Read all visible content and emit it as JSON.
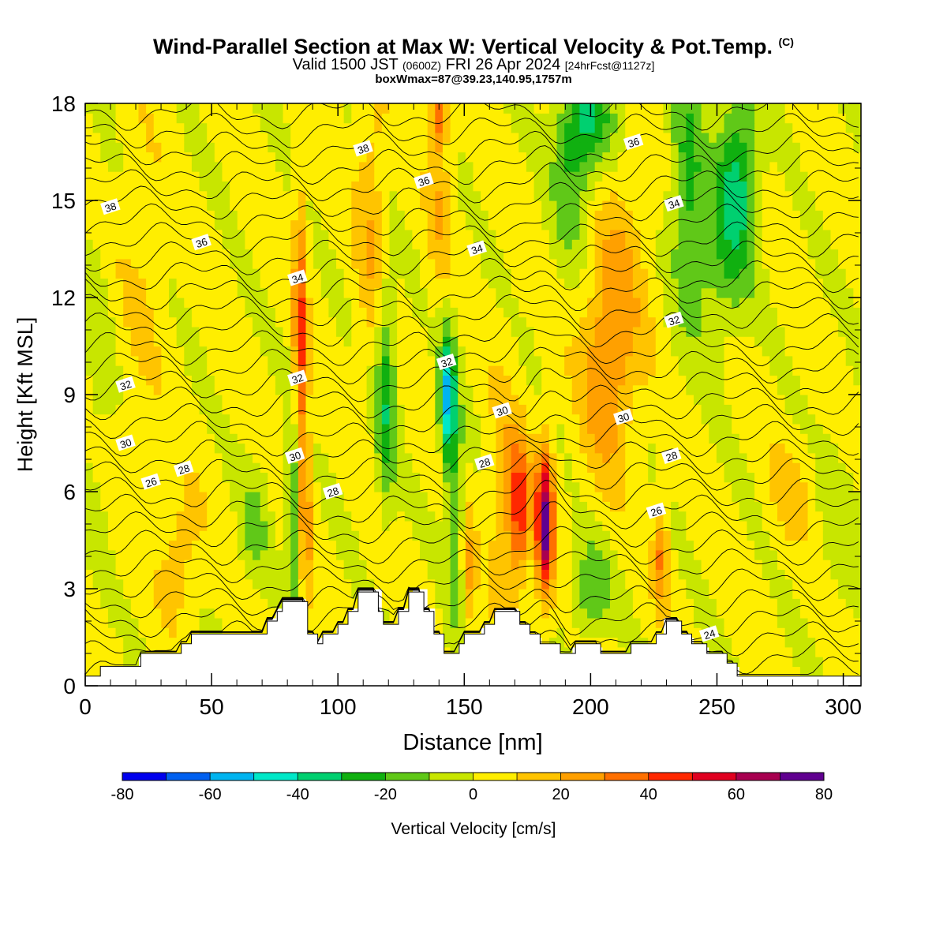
{
  "title": {
    "main": "Wind-Parallel Section at Max W: Vertical Velocity & Pot.Temp.",
    "copyright": "(C)",
    "valid_prefix": "Valid 1500 JST",
    "valid_z": "(0600Z)",
    "valid_date": "FRI 26 Apr 2024",
    "forecast": "[24hrFcst@1127z]",
    "boxline": "boxWmax=87@39.23,140.95,1757m"
  },
  "chart_data": {
    "type": "heatmap",
    "xlabel": "Distance [nm]",
    "ylabel": "Height [Kft MSL]",
    "xlim": [
      0,
      307
    ],
    "ylim": [
      0,
      18
    ],
    "x_ticks": [
      "0",
      "50",
      "100",
      "150",
      "200",
      "250",
      "300"
    ],
    "y_ticks": [
      "0",
      "3",
      "6",
      "9",
      "12",
      "15",
      "18"
    ],
    "colorbar": {
      "label": "Vertical Velocity [cm/s]",
      "range": [
        -80,
        80
      ],
      "step": 10,
      "tick_labels": [
        "-80",
        "-60",
        "-40",
        "-20",
        "0",
        "20",
        "40",
        "60",
        "80"
      ],
      "colors": [
        "#0000ee",
        "#0060f0",
        "#00b4f0",
        "#00e8c8",
        "#00d070",
        "#10b010",
        "#60c818",
        "#c8e600",
        "#ffee00",
        "#ffc400",
        "#ffa000",
        "#ff7000",
        "#ff2800",
        "#e00020",
        "#a80050",
        "#600090"
      ]
    },
    "contour_labels": [
      {
        "text": "38",
        "x": 10,
        "y": 14.8
      },
      {
        "text": "36",
        "x": 46,
        "y": 13.7
      },
      {
        "text": "34",
        "x": 84,
        "y": 12.6
      },
      {
        "text": "32",
        "x": 16,
        "y": 9.3
      },
      {
        "text": "32",
        "x": 84,
        "y": 9.5
      },
      {
        "text": "30",
        "x": 16,
        "y": 7.5
      },
      {
        "text": "30",
        "x": 83,
        "y": 7.1
      },
      {
        "text": "28",
        "x": 39,
        "y": 6.7
      },
      {
        "text": "26",
        "x": 26,
        "y": 6.3
      },
      {
        "text": "28",
        "x": 98,
        "y": 6.0
      },
      {
        "text": "38",
        "x": 110,
        "y": 16.6
      },
      {
        "text": "36",
        "x": 134,
        "y": 15.6
      },
      {
        "text": "34",
        "x": 155,
        "y": 13.5
      },
      {
        "text": "32",
        "x": 143,
        "y": 10.0
      },
      {
        "text": "30",
        "x": 165,
        "y": 8.5
      },
      {
        "text": "28",
        "x": 158,
        "y": 6.9
      },
      {
        "text": "36",
        "x": 217,
        "y": 16.8
      },
      {
        "text": "34",
        "x": 233,
        "y": 14.9
      },
      {
        "text": "32",
        "x": 233,
        "y": 11.3
      },
      {
        "text": "30",
        "x": 213,
        "y": 8.3
      },
      {
        "text": "28",
        "x": 232,
        "y": 7.1
      },
      {
        "text": "26",
        "x": 226,
        "y": 5.4
      },
      {
        "text": "24",
        "x": 247,
        "y": 1.6
      }
    ],
    "terrain_heights": [
      [
        0,
        0.3
      ],
      [
        6,
        0.3
      ],
      [
        6,
        0.6
      ],
      [
        22,
        0.6
      ],
      [
        22,
        1.0
      ],
      [
        38,
        1.0
      ],
      [
        38,
        1.3
      ],
      [
        42,
        1.3
      ],
      [
        42,
        1.6
      ],
      [
        72,
        1.6
      ],
      [
        72,
        2.0
      ],
      [
        76,
        2.0
      ],
      [
        76,
        2.3
      ],
      [
        78,
        2.3
      ],
      [
        78,
        2.6
      ],
      [
        88,
        2.6
      ],
      [
        88,
        1.6
      ],
      [
        92,
        1.6
      ],
      [
        92,
        1.3
      ],
      [
        94,
        1.3
      ],
      [
        94,
        1.6
      ],
      [
        100,
        1.6
      ],
      [
        100,
        1.9
      ],
      [
        104,
        1.9
      ],
      [
        104,
        2.3
      ],
      [
        108,
        2.3
      ],
      [
        108,
        2.9
      ],
      [
        116,
        2.9
      ],
      [
        116,
        2.3
      ],
      [
        118,
        2.3
      ],
      [
        118,
        1.9
      ],
      [
        124,
        1.9
      ],
      [
        124,
        2.3
      ],
      [
        128,
        2.3
      ],
      [
        128,
        2.9
      ],
      [
        134,
        2.9
      ],
      [
        134,
        2.3
      ],
      [
        138,
        2.3
      ],
      [
        138,
        1.6
      ],
      [
        142,
        1.6
      ],
      [
        142,
        1.0
      ],
      [
        148,
        1.0
      ],
      [
        148,
        1.3
      ],
      [
        150,
        1.3
      ],
      [
        150,
        1.6
      ],
      [
        158,
        1.6
      ],
      [
        158,
        1.9
      ],
      [
        162,
        1.9
      ],
      [
        162,
        2.3
      ],
      [
        172,
        2.3
      ],
      [
        172,
        1.9
      ],
      [
        176,
        1.9
      ],
      [
        176,
        1.6
      ],
      [
        180,
        1.6
      ],
      [
        180,
        1.3
      ],
      [
        188,
        1.3
      ],
      [
        188,
        1.0
      ],
      [
        194,
        1.0
      ],
      [
        194,
        1.3
      ],
      [
        204,
        1.3
      ],
      [
        204,
        1.0
      ],
      [
        216,
        1.0
      ],
      [
        216,
        1.3
      ],
      [
        226,
        1.3
      ],
      [
        226,
        1.6
      ],
      [
        230,
        1.6
      ],
      [
        230,
        2.0
      ],
      [
        236,
        2.0
      ],
      [
        236,
        1.6
      ],
      [
        240,
        1.6
      ],
      [
        240,
        1.3
      ],
      [
        246,
        1.3
      ],
      [
        246,
        1.0
      ],
      [
        254,
        1.0
      ],
      [
        254,
        0.7
      ],
      [
        258,
        0.7
      ],
      [
        258,
        0.3
      ],
      [
        307,
        0.3
      ]
    ]
  }
}
